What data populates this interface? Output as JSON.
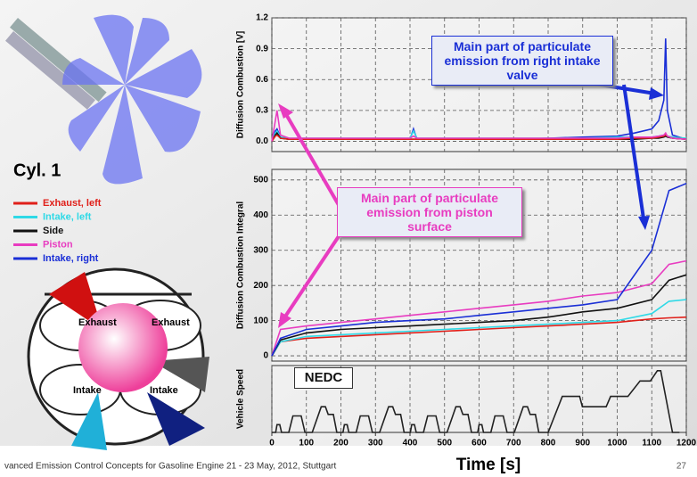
{
  "chart_data": [
    {
      "type": "line",
      "y_label": "Diffusion Combustion [V]",
      "annotation": "Main part of particulate emission from right intake valve",
      "xlim": [
        0,
        1200
      ],
      "ylim": [
        -0.1,
        1.2
      ],
      "yticks": [
        {
          "value": 0,
          "label": "0.0"
        },
        0.3,
        0.6,
        0.9,
        1.2
      ],
      "grid": true,
      "x": [
        0,
        10,
        15,
        25,
        50,
        100,
        200,
        300,
        400,
        410,
        420,
        500,
        600,
        700,
        800,
        900,
        1000,
        1050,
        1100,
        1120,
        1135,
        1140,
        1145,
        1160,
        1200
      ],
      "series": [
        {
          "name": "Intake, right",
          "color": "#1a2fd6",
          "values": [
            0.0,
            0.1,
            0.12,
            0.04,
            0.02,
            0.02,
            0.02,
            0.02,
            0.02,
            0.12,
            0.02,
            0.02,
            0.02,
            0.02,
            0.03,
            0.04,
            0.05,
            0.08,
            0.12,
            0.2,
            0.4,
            1.0,
            0.3,
            0.06,
            0.02
          ]
        },
        {
          "name": "Intake, left",
          "color": "#2fd9e6",
          "values": [
            0.0,
            0.08,
            0.1,
            0.04,
            0.03,
            0.03,
            0.03,
            0.03,
            0.03,
            0.1,
            0.03,
            0.03,
            0.03,
            0.03,
            0.03,
            0.03,
            0.04,
            0.04,
            0.04,
            0.05,
            0.06,
            0.07,
            0.05,
            0.04,
            0.03
          ]
        },
        {
          "name": "Side",
          "color": "#111111",
          "values": [
            0.0,
            0.06,
            0.08,
            0.03,
            0.02,
            0.02,
            0.02,
            0.02,
            0.02,
            0.02,
            0.02,
            0.02,
            0.02,
            0.02,
            0.02,
            0.02,
            0.02,
            0.02,
            0.03,
            0.03,
            0.04,
            0.05,
            0.04,
            0.03,
            0.02
          ]
        },
        {
          "name": "Exhaust, left",
          "color": "#e0201a",
          "values": [
            0.0,
            0.05,
            0.06,
            0.03,
            0.02,
            0.02,
            0.02,
            0.02,
            0.02,
            0.02,
            0.02,
            0.02,
            0.02,
            0.02,
            0.02,
            0.02,
            0.02,
            0.03,
            0.03,
            0.04,
            0.05,
            0.06,
            0.05,
            0.03,
            0.02
          ]
        },
        {
          "name": "Piston",
          "color": "#e83cc0",
          "values": [
            0.0,
            0.2,
            0.3,
            0.06,
            0.03,
            0.03,
            0.03,
            0.03,
            0.03,
            0.05,
            0.03,
            0.03,
            0.03,
            0.03,
            0.03,
            0.03,
            0.03,
            0.04,
            0.04,
            0.05,
            0.06,
            0.08,
            0.05,
            0.03,
            0.02
          ]
        }
      ]
    },
    {
      "type": "line",
      "y_label": "Diffusion Combustion Integral",
      "annotation": "Main part of particulate emission from piston surface",
      "xlim": [
        0,
        1200
      ],
      "ylim": [
        -15,
        530
      ],
      "yticks": [
        0,
        100,
        200,
        300,
        400,
        500
      ],
      "grid": true,
      "x": [
        0,
        25,
        100,
        200,
        300,
        400,
        500,
        600,
        700,
        800,
        900,
        1000,
        1100,
        1150,
        1200
      ],
      "series": [
        {
          "name": "Exhaust, left",
          "color": "#e0201a",
          "values": [
            0,
            40,
            50,
            55,
            60,
            65,
            70,
            75,
            80,
            85,
            90,
            95,
            105,
            108,
            110
          ]
        },
        {
          "name": "Intake, left",
          "color": "#2fd9e6",
          "values": [
            0,
            40,
            55,
            60,
            65,
            70,
            75,
            80,
            85,
            90,
            95,
            100,
            120,
            155,
            160
          ]
        },
        {
          "name": "Side",
          "color": "#111111",
          "values": [
            0,
            45,
            65,
            75,
            80,
            85,
            90,
            95,
            100,
            110,
            125,
            135,
            160,
            215,
            230
          ]
        },
        {
          "name": "Piston",
          "color": "#e83cc0",
          "values": [
            0,
            75,
            85,
            95,
            105,
            115,
            125,
            135,
            145,
            155,
            170,
            180,
            205,
            260,
            270
          ]
        },
        {
          "name": "Intake, right",
          "color": "#1a2fd6",
          "values": [
            0,
            50,
            75,
            85,
            95,
            100,
            105,
            115,
            125,
            135,
            145,
            160,
            300,
            470,
            490
          ]
        }
      ]
    },
    {
      "type": "line",
      "y_label": "Vehicle Speed",
      "annotation": "NEDC",
      "x_label": "Time [s]",
      "xlim": [
        0,
        1200
      ],
      "ylim": [
        0,
        130
      ],
      "xticks": [
        0,
        100,
        200,
        300,
        400,
        500,
        600,
        700,
        800,
        900,
        1000,
        1100,
        1200
      ],
      "grid": true,
      "x": [
        0,
        11,
        15,
        23,
        28,
        49,
        61,
        85,
        96,
        117,
        143,
        155,
        163,
        178,
        188,
        195,
        206,
        210,
        218,
        223,
        244,
        256,
        280,
        291,
        312,
        338,
        350,
        358,
        373,
        383,
        390,
        401,
        405,
        413,
        418,
        439,
        451,
        475,
        486,
        507,
        533,
        545,
        553,
        568,
        578,
        585,
        596,
        600,
        608,
        613,
        634,
        646,
        670,
        681,
        702,
        728,
        740,
        748,
        763,
        773,
        780,
        800,
        841,
        891,
        899,
        968,
        981,
        1031,
        1066,
        1096,
        1116,
        1126,
        1160,
        1180
      ],
      "color": "#222222",
      "values": [
        0,
        0,
        15,
        15,
        0,
        0,
        32,
        32,
        0,
        0,
        50,
        50,
        35,
        35,
        0,
        0,
        0,
        15,
        15,
        0,
        0,
        32,
        32,
        0,
        0,
        50,
        50,
        35,
        35,
        0,
        0,
        0,
        15,
        15,
        0,
        0,
        32,
        32,
        0,
        0,
        50,
        50,
        35,
        35,
        0,
        0,
        0,
        15,
        15,
        0,
        0,
        32,
        32,
        0,
        0,
        50,
        50,
        35,
        35,
        0,
        0,
        0,
        70,
        70,
        50,
        50,
        70,
        70,
        100,
        100,
        120,
        120,
        0,
        0
      ]
    }
  ],
  "slide": {
    "legend_title": "Cyl. 1",
    "diagram_labels": [
      "Exhaust",
      "Exhaust",
      "Intake",
      "Intake"
    ],
    "footer": "vanced Emission Control Concepts for Gasoline Engine  21 - 23 May, 2012, Stuttgart",
    "page_number": "27"
  }
}
